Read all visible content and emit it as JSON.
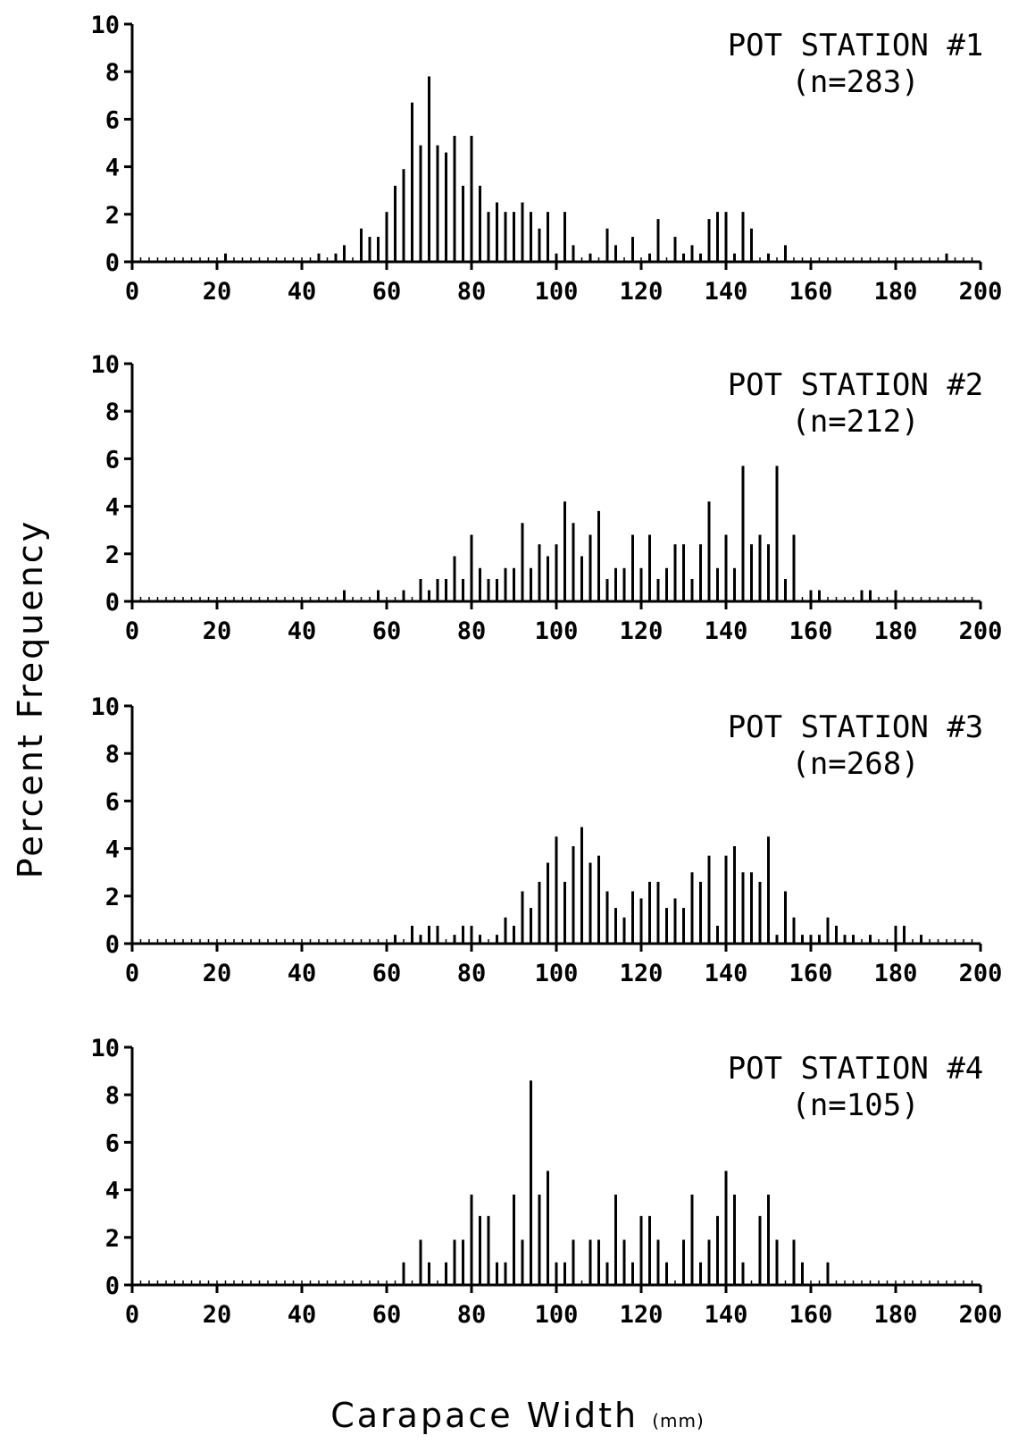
{
  "ylabel": "Percent Frequency",
  "xlabel": "Carapace Width",
  "xlabel_unit": "(mm)",
  "chart_data": [
    {
      "type": "bar",
      "title": "POT STATION #1",
      "subtitle": "(n=283)",
      "xlim": [
        0,
        200
      ],
      "ylim": [
        0,
        10
      ],
      "xticks": [
        0,
        20,
        40,
        60,
        80,
        100,
        120,
        140,
        160,
        180,
        200
      ],
      "yticks": [
        0,
        2,
        4,
        6,
        8,
        10
      ],
      "bars": [
        [
          22,
          0.35
        ],
        [
          44,
          0.35
        ],
        [
          48,
          0.35
        ],
        [
          50,
          0.7
        ],
        [
          54,
          1.4
        ],
        [
          56,
          1.05
        ],
        [
          58,
          1.05
        ],
        [
          60,
          2.1
        ],
        [
          62,
          3.2
        ],
        [
          64,
          3.9
        ],
        [
          66,
          6.7
        ],
        [
          68,
          4.9
        ],
        [
          70,
          7.8
        ],
        [
          72,
          4.9
        ],
        [
          74,
          4.6
        ],
        [
          76,
          5.3
        ],
        [
          78,
          3.2
        ],
        [
          80,
          5.3
        ],
        [
          82,
          3.2
        ],
        [
          84,
          2.1
        ],
        [
          86,
          2.5
        ],
        [
          88,
          2.1
        ],
        [
          90,
          2.1
        ],
        [
          92,
          2.5
        ],
        [
          94,
          2.1
        ],
        [
          96,
          1.4
        ],
        [
          98,
          2.1
        ],
        [
          100,
          0.35
        ],
        [
          102,
          2.1
        ],
        [
          104,
          0.7
        ],
        [
          108,
          0.35
        ],
        [
          112,
          1.4
        ],
        [
          114,
          0.7
        ],
        [
          118,
          1.05
        ],
        [
          122,
          0.35
        ],
        [
          124,
          1.8
        ],
        [
          128,
          1.05
        ],
        [
          130,
          0.35
        ],
        [
          132,
          0.7
        ],
        [
          134,
          0.35
        ],
        [
          136,
          1.8
        ],
        [
          138,
          2.1
        ],
        [
          140,
          2.1
        ],
        [
          142,
          0.35
        ],
        [
          144,
          2.1
        ],
        [
          146,
          1.4
        ],
        [
          150,
          0.35
        ],
        [
          154,
          0.7
        ],
        [
          192,
          0.35
        ]
      ]
    },
    {
      "type": "bar",
      "title": "POT STATION #2",
      "subtitle": "(n=212)",
      "xlim": [
        0,
        200
      ],
      "ylim": [
        0,
        10
      ],
      "xticks": [
        0,
        20,
        40,
        60,
        80,
        100,
        120,
        140,
        160,
        180,
        200
      ],
      "yticks": [
        0,
        2,
        4,
        6,
        8,
        10
      ],
      "bars": [
        [
          50,
          0.47
        ],
        [
          58,
          0.47
        ],
        [
          64,
          0.47
        ],
        [
          68,
          0.94
        ],
        [
          70,
          0.47
        ],
        [
          72,
          0.94
        ],
        [
          74,
          0.94
        ],
        [
          76,
          1.9
        ],
        [
          78,
          0.94
        ],
        [
          80,
          2.8
        ],
        [
          82,
          1.4
        ],
        [
          84,
          0.94
        ],
        [
          86,
          0.94
        ],
        [
          88,
          1.4
        ],
        [
          90,
          1.4
        ],
        [
          92,
          3.3
        ],
        [
          94,
          1.4
        ],
        [
          96,
          2.4
        ],
        [
          98,
          1.9
        ],
        [
          100,
          2.4
        ],
        [
          102,
          4.2
        ],
        [
          104,
          3.3
        ],
        [
          106,
          1.9
        ],
        [
          108,
          2.8
        ],
        [
          110,
          3.8
        ],
        [
          112,
          0.94
        ],
        [
          114,
          1.4
        ],
        [
          116,
          1.4
        ],
        [
          118,
          2.8
        ],
        [
          120,
          1.4
        ],
        [
          122,
          2.8
        ],
        [
          124,
          0.94
        ],
        [
          126,
          1.4
        ],
        [
          128,
          2.4
        ],
        [
          130,
          2.4
        ],
        [
          132,
          0.94
        ],
        [
          134,
          2.4
        ],
        [
          136,
          4.2
        ],
        [
          138,
          1.4
        ],
        [
          140,
          2.8
        ],
        [
          142,
          1.4
        ],
        [
          144,
          5.7
        ],
        [
          146,
          2.4
        ],
        [
          148,
          2.8
        ],
        [
          150,
          2.4
        ],
        [
          152,
          5.7
        ],
        [
          154,
          0.94
        ],
        [
          156,
          2.8
        ],
        [
          160,
          0.47
        ],
        [
          162,
          0.47
        ],
        [
          172,
          0.47
        ],
        [
          174,
          0.47
        ],
        [
          180,
          0.47
        ]
      ]
    },
    {
      "type": "bar",
      "title": "POT STATION #3",
      "subtitle": "(n=268)",
      "xlim": [
        0,
        200
      ],
      "ylim": [
        0,
        10
      ],
      "xticks": [
        0,
        20,
        40,
        60,
        80,
        100,
        120,
        140,
        160,
        180,
        200
      ],
      "yticks": [
        0,
        2,
        4,
        6,
        8,
        10
      ],
      "bars": [
        [
          62,
          0.37
        ],
        [
          66,
          0.75
        ],
        [
          68,
          0.37
        ],
        [
          70,
          0.75
        ],
        [
          72,
          0.75
        ],
        [
          76,
          0.37
        ],
        [
          78,
          0.75
        ],
        [
          80,
          0.75
        ],
        [
          82,
          0.37
        ],
        [
          86,
          0.37
        ],
        [
          88,
          1.1
        ],
        [
          90,
          0.75
        ],
        [
          92,
          2.2
        ],
        [
          94,
          1.5
        ],
        [
          96,
          2.6
        ],
        [
          98,
          3.4
        ],
        [
          100,
          4.5
        ],
        [
          102,
          2.6
        ],
        [
          104,
          4.1
        ],
        [
          106,
          4.9
        ],
        [
          108,
          3.4
        ],
        [
          110,
          3.7
        ],
        [
          112,
          2.2
        ],
        [
          114,
          1.5
        ],
        [
          116,
          1.1
        ],
        [
          118,
          2.2
        ],
        [
          120,
          1.9
        ],
        [
          122,
          2.6
        ],
        [
          124,
          2.6
        ],
        [
          126,
          1.5
        ],
        [
          128,
          1.9
        ],
        [
          130,
          1.5
        ],
        [
          132,
          3.0
        ],
        [
          134,
          2.6
        ],
        [
          136,
          3.7
        ],
        [
          138,
          0.75
        ],
        [
          140,
          3.7
        ],
        [
          142,
          4.1
        ],
        [
          144,
          3.0
        ],
        [
          146,
          3.0
        ],
        [
          148,
          2.6
        ],
        [
          150,
          4.5
        ],
        [
          152,
          0.37
        ],
        [
          154,
          2.2
        ],
        [
          156,
          1.1
        ],
        [
          158,
          0.37
        ],
        [
          160,
          0.37
        ],
        [
          162,
          0.37
        ],
        [
          164,
          1.1
        ],
        [
          166,
          0.75
        ],
        [
          168,
          0.37
        ],
        [
          170,
          0.37
        ],
        [
          174,
          0.37
        ],
        [
          180,
          0.75
        ],
        [
          182,
          0.75
        ],
        [
          186,
          0.37
        ]
      ]
    },
    {
      "type": "bar",
      "title": "POT STATION #4",
      "subtitle": "(n=105)",
      "xlim": [
        0,
        200
      ],
      "ylim": [
        0,
        10
      ],
      "xticks": [
        0,
        20,
        40,
        60,
        80,
        100,
        120,
        140,
        160,
        180,
        200
      ],
      "yticks": [
        0,
        2,
        4,
        6,
        8,
        10
      ],
      "bars": [
        [
          64,
          0.95
        ],
        [
          68,
          1.9
        ],
        [
          70,
          0.95
        ],
        [
          74,
          0.95
        ],
        [
          76,
          1.9
        ],
        [
          78,
          1.9
        ],
        [
          80,
          3.8
        ],
        [
          82,
          2.9
        ],
        [
          84,
          2.9
        ],
        [
          86,
          0.95
        ],
        [
          88,
          0.95
        ],
        [
          90,
          3.8
        ],
        [
          92,
          1.9
        ],
        [
          94,
          8.6
        ],
        [
          96,
          3.8
        ],
        [
          98,
          4.8
        ],
        [
          100,
          0.95
        ],
        [
          102,
          0.95
        ],
        [
          104,
          1.9
        ],
        [
          108,
          1.9
        ],
        [
          110,
          1.9
        ],
        [
          112,
          0.95
        ],
        [
          114,
          3.8
        ],
        [
          116,
          1.9
        ],
        [
          118,
          0.95
        ],
        [
          120,
          2.9
        ],
        [
          122,
          2.9
        ],
        [
          124,
          1.9
        ],
        [
          126,
          0.95
        ],
        [
          130,
          1.9
        ],
        [
          132,
          3.8
        ],
        [
          134,
          0.95
        ],
        [
          136,
          1.9
        ],
        [
          138,
          2.9
        ],
        [
          140,
          4.8
        ],
        [
          142,
          3.8
        ],
        [
          144,
          0.95
        ],
        [
          148,
          2.9
        ],
        [
          150,
          3.8
        ],
        [
          152,
          1.9
        ],
        [
          156,
          1.9
        ],
        [
          158,
          0.95
        ],
        [
          164,
          0.95
        ]
      ]
    }
  ]
}
